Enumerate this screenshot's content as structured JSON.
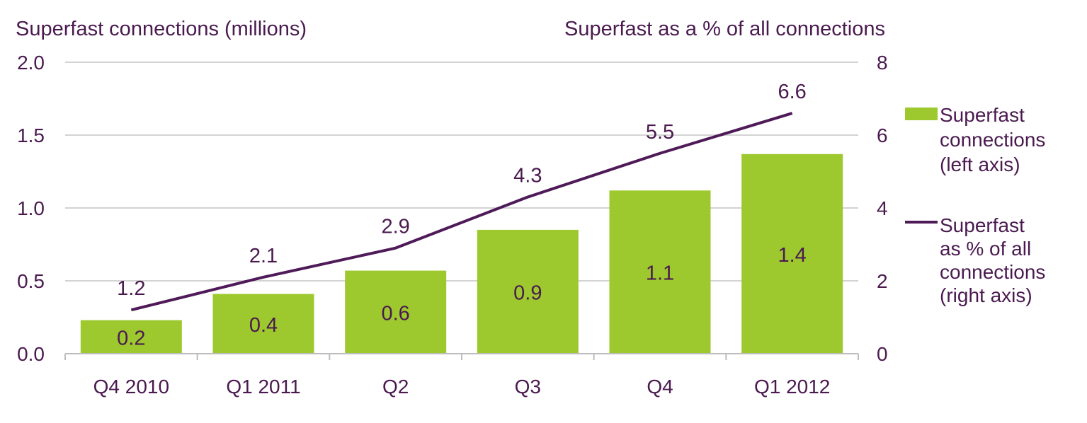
{
  "chart_data": {
    "type": "bar",
    "categories": [
      "Q4 2010",
      "Q1 2011",
      "Q2",
      "Q3",
      "Q4",
      "Q1 2012"
    ],
    "series": [
      {
        "name": "Superfast connections (left axis)",
        "type": "bar",
        "axis": "left",
        "values": [
          0.23,
          0.41,
          0.57,
          0.85,
          1.12,
          1.37
        ],
        "labels": [
          "0.2",
          "0.4",
          "0.6",
          "0.9",
          "1.1",
          "1.4"
        ]
      },
      {
        "name": "Superfast as % of all connections (right axis)",
        "type": "line",
        "axis": "right",
        "values": [
          1.2,
          2.1,
          2.9,
          4.3,
          5.5,
          6.6
        ],
        "labels": [
          "1.2",
          "2.1",
          "2.9",
          "4.3",
          "5.5",
          "6.6"
        ]
      }
    ],
    "ylabel_left": "Superfast connections (millions)",
    "ylabel_right": "Superfast as a % of all connections",
    "ylim_left": [
      0,
      2.0
    ],
    "ylim_right": [
      0,
      8
    ],
    "yticks_left": [
      "0.0",
      "0.5",
      "1.0",
      "1.5",
      "2.0"
    ],
    "yticks_right": [
      "0",
      "2",
      "4",
      "6",
      "8"
    ],
    "grid": true,
    "legend_position": "right",
    "legend": {
      "bar_lines": [
        "Superfast",
        "connections",
        "(left axis)"
      ],
      "line_lines": [
        "Superfast",
        "as % of all",
        "connections",
        "(right axis)"
      ]
    },
    "colors": {
      "bar": "#9dc92f",
      "line": "#4e1a57",
      "text": "#4a1a4f"
    }
  }
}
